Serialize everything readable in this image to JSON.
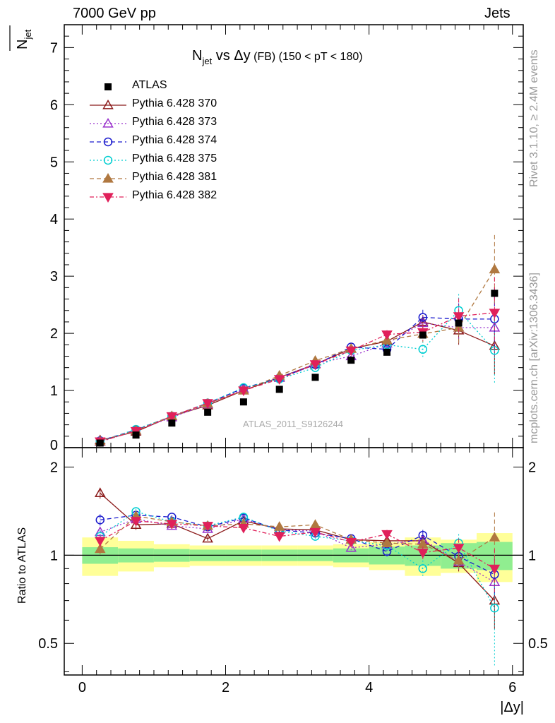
{
  "header": {
    "left": "7000 GeV pp",
    "right": "Jets"
  },
  "side_labels": {
    "top": "Rivet 3.1.10, ≥ 2.4M events",
    "bottom": "mcplots.cern.ch [arXiv:1306.3436]"
  },
  "chart_data": {
    "type": "scatter",
    "title_main": "N",
    "title_sub": "jet",
    "title_rest": " vs Δy",
    "title_fb": " (FB) ",
    "title_range": "(150 < pT < 180)",
    "watermark": "ATLAS_2011_S9126244",
    "ylabel_top": "N",
    "ylabel_top_sub": "jet",
    "ylabel_bottom": "Ratio to ATLAS",
    "xlabel": "|Δy|",
    "xlim": [
      -0.25,
      6.15
    ],
    "ylim_top": [
      0,
      7.4
    ],
    "ylim_bottom": [
      0.39,
      2.33
    ],
    "x": [
      0.25,
      0.75,
      1.25,
      1.75,
      2.25,
      2.75,
      3.25,
      3.75,
      4.25,
      4.75,
      5.25,
      5.75
    ],
    "data": {
      "name": "ATLAS",
      "values": [
        0.08,
        0.22,
        0.43,
        0.62,
        0.8,
        1.02,
        1.23,
        1.53,
        1.67,
        1.97,
        2.18,
        2.7
      ],
      "bands_inner": [
        0.065,
        0.055,
        0.05,
        0.045,
        0.045,
        0.045,
        0.045,
        0.055,
        0.07,
        0.08,
        0.1,
        0.11
      ],
      "bands_outer": [
        0.15,
        0.12,
        0.09,
        0.08,
        0.08,
        0.08,
        0.08,
        0.09,
        0.11,
        0.15,
        0.13,
        0.19
      ]
    },
    "series": [
      {
        "name": "Pythia 6.428 370",
        "color": "#8b1a1a",
        "dash": "",
        "marker": "tri-up-open",
        "values": [
          0.13,
          0.28,
          0.55,
          0.74,
          1.0,
          1.23,
          1.46,
          1.73,
          1.86,
          2.2,
          2.05,
          1.78
        ],
        "ratio": [
          1.63,
          1.27,
          1.28,
          1.14,
          1.31,
          1.23,
          1.22,
          1.13,
          1.12,
          1.12,
          0.94,
          0.7
        ],
        "ratio_err": [
          0.07,
          0.05,
          0.02,
          0.02,
          0.02,
          0.02,
          0.02,
          0.03,
          0.04,
          0.06,
          0.06,
          0.14
        ]
      },
      {
        "name": "Pythia 6.428 373",
        "color": "#9932cc",
        "dash": "2,3",
        "marker": "tri-up-open",
        "values": [
          0.1,
          0.3,
          0.53,
          0.76,
          1.03,
          1.22,
          1.47,
          1.6,
          1.82,
          2.18,
          2.1,
          2.1
        ],
        "ratio": [
          1.2,
          1.33,
          1.26,
          1.23,
          1.33,
          1.22,
          1.21,
          1.06,
          1.09,
          1.13,
          0.95,
          0.81
        ],
        "ratio_err": [
          0.05,
          0.03,
          0.02,
          0.02,
          0.02,
          0.02,
          0.02,
          0.02,
          0.04,
          0.05,
          0.06,
          0.12
        ]
      },
      {
        "name": "Pythia 6.428 374",
        "color": "#1a1acd",
        "dash": "6,4",
        "marker": "circle-open",
        "values": [
          0.12,
          0.31,
          0.55,
          0.78,
          1.04,
          1.22,
          1.45,
          1.76,
          1.72,
          2.28,
          2.25,
          2.25
        ],
        "ratio": [
          1.32,
          1.37,
          1.35,
          1.25,
          1.34,
          1.22,
          1.19,
          1.14,
          1.03,
          1.17,
          0.99,
          0.86
        ],
        "ratio_err": [
          0.06,
          0.03,
          0.02,
          0.02,
          0.02,
          0.02,
          0.02,
          0.03,
          0.04,
          0.05,
          0.06,
          0.13
        ]
      },
      {
        "name": "Pythia 6.428 375",
        "color": "#00ced1",
        "dash": "2,3",
        "marker": "circle-open",
        "values": [
          0.11,
          0.32,
          0.55,
          0.78,
          1.05,
          1.2,
          1.4,
          1.7,
          1.8,
          1.72,
          2.4,
          1.7
        ],
        "ratio": [
          1.16,
          1.41,
          1.3,
          1.26,
          1.35,
          1.21,
          1.16,
          1.12,
          1.08,
          0.9,
          1.1,
          0.66
        ],
        "ratio_err": [
          0.06,
          0.03,
          0.02,
          0.02,
          0.02,
          0.02,
          0.02,
          0.03,
          0.04,
          0.06,
          0.08,
          0.24
        ]
      },
      {
        "name": "Pythia 6.428 381",
        "color": "#b07840",
        "dash": "6,4",
        "marker": "tri-up-filled",
        "values": [
          0.11,
          0.3,
          0.55,
          0.77,
          1.0,
          1.26,
          1.52,
          1.73,
          1.88,
          1.99,
          2.1,
          3.12
        ],
        "ratio": [
          1.05,
          1.36,
          1.3,
          1.26,
          1.28,
          1.25,
          1.27,
          1.13,
          1.1,
          1.09,
          0.96,
          1.15
        ],
        "ratio_err": [
          0.05,
          0.03,
          0.02,
          0.02,
          0.02,
          0.02,
          0.02,
          0.03,
          0.04,
          0.05,
          0.08,
          0.25
        ]
      },
      {
        "name": "Pythia 6.428 382",
        "color": "#e0205a",
        "dash": "6,3,2,3",
        "marker": "tri-down-filled",
        "values": [
          0.11,
          0.29,
          0.55,
          0.78,
          1.0,
          1.2,
          1.46,
          1.7,
          1.98,
          2.02,
          2.3,
          2.36
        ],
        "ratio": [
          1.12,
          1.31,
          1.28,
          1.26,
          1.24,
          1.16,
          1.2,
          1.11,
          1.18,
          1.02,
          1.06,
          0.9
        ],
        "ratio_err": [
          0.05,
          0.03,
          0.02,
          0.02,
          0.02,
          0.02,
          0.02,
          0.03,
          0.04,
          0.05,
          0.08,
          0.15
        ]
      }
    ],
    "top_err": [
      0.02,
      0.03,
      0.03,
      0.03,
      0.03,
      0.03,
      0.04,
      0.05,
      0.06,
      0.12,
      0.25,
      0.5
    ],
    "xticks": [
      "0",
      "2",
      "4",
      "6"
    ],
    "yticks_top": [
      "0",
      "1",
      "2",
      "3",
      "4",
      "5",
      "6",
      "7"
    ],
    "yticks_bottom": [
      "0.5",
      "1",
      "2"
    ],
    "band_colors": {
      "inner": "#90ee90",
      "outer": "#ffff99"
    }
  }
}
